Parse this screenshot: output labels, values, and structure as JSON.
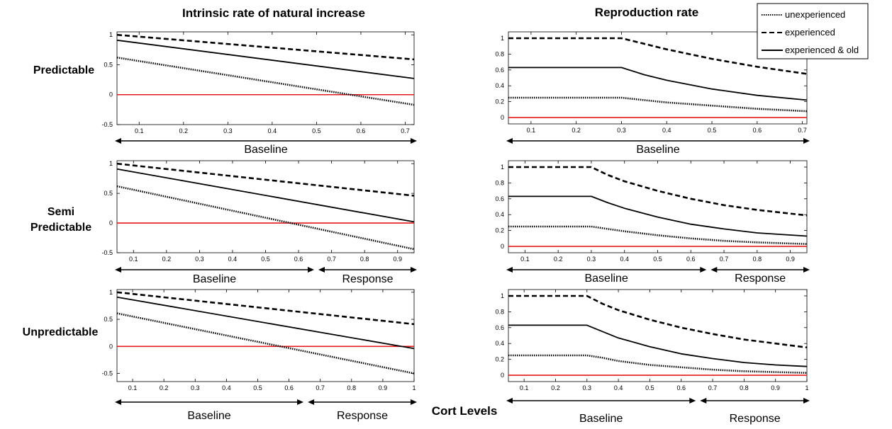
{
  "figure": {
    "xlabel": "Cort Levels",
    "row_labels": [
      [
        "Predictable"
      ],
      [
        "Semi",
        "Predictable"
      ],
      [
        "Unpredictable"
      ]
    ],
    "column_titles": [
      "Intrinsic rate of natural increase",
      "Reproduction rate"
    ],
    "legend": {
      "placement": "top-right",
      "entries": [
        {
          "label": "unexperienced",
          "style": "dotted"
        },
        {
          "label": "experienced",
          "style": "dashed"
        },
        {
          "label": "experienced & old",
          "style": "solid"
        }
      ]
    },
    "colors": {
      "line": "#000000",
      "reference": "#e41a1c",
      "axis": "#000000"
    }
  },
  "chart_data": [
    {
      "id": "r-predictable",
      "type": "line",
      "title": "Intrinsic rate of natural increase",
      "row": "Predictable",
      "xlim": [
        0.05,
        0.72
      ],
      "ylim": [
        -0.5,
        1.05
      ],
      "xticks": [
        0.1,
        0.2,
        0.3,
        0.4,
        0.5,
        0.6,
        0.7
      ],
      "yticks": [
        -0.5,
        0,
        0.5,
        1
      ],
      "reference_y": 0,
      "ranges": [
        {
          "label": "Baseline",
          "from": 0.05,
          "to": 0.72
        }
      ],
      "series": [
        {
          "name": "unexperienced",
          "style": "dotted",
          "x": [
            0.05,
            0.72
          ],
          "y": [
            0.62,
            -0.17
          ]
        },
        {
          "name": "experienced",
          "style": "dashed",
          "x": [
            0.05,
            0.72
          ],
          "y": [
            1.0,
            0.59
          ]
        },
        {
          "name": "experienced & old",
          "style": "solid",
          "x": [
            0.05,
            0.72
          ],
          "y": [
            0.91,
            0.27
          ]
        }
      ]
    },
    {
      "id": "r-semi",
      "type": "line",
      "title": "Intrinsic rate of natural increase",
      "row": "Semi Predictable",
      "xlim": [
        0.05,
        0.95
      ],
      "ylim": [
        -0.5,
        1.05
      ],
      "xticks": [
        0.1,
        0.2,
        0.3,
        0.4,
        0.5,
        0.6,
        0.7,
        0.8,
        0.9
      ],
      "yticks": [
        -0.5,
        0,
        0.5,
        1
      ],
      "reference_y": 0,
      "ranges": [
        {
          "label": "Baseline",
          "from": 0.05,
          "to": 0.65
        },
        {
          "label": "Response",
          "from": 0.65,
          "to": 0.95
        }
      ],
      "series": [
        {
          "name": "unexperienced",
          "style": "dotted",
          "x": [
            0.05,
            0.95
          ],
          "y": [
            0.62,
            -0.44
          ]
        },
        {
          "name": "experienced",
          "style": "dashed",
          "x": [
            0.05,
            0.95
          ],
          "y": [
            1.0,
            0.46
          ]
        },
        {
          "name": "experienced & old",
          "style": "solid",
          "x": [
            0.05,
            0.95
          ],
          "y": [
            0.91,
            0.02
          ]
        }
      ]
    },
    {
      "id": "r-unpredictable",
      "type": "line",
      "title": "Intrinsic rate of natural increase",
      "row": "Unpredictable",
      "xlim": [
        0.05,
        1.0
      ],
      "ylim": [
        -0.65,
        1.05
      ],
      "xticks": [
        0.1,
        0.2,
        0.3,
        0.4,
        0.5,
        0.6,
        0.7,
        0.8,
        0.9,
        1
      ],
      "yticks": [
        -0.5,
        0,
        0.5,
        1
      ],
      "reference_y": 0,
      "ranges": [
        {
          "label": "Baseline",
          "from": 0.05,
          "to": 0.65
        },
        {
          "label": "Response",
          "from": 0.65,
          "to": 1.0
        }
      ],
      "series": [
        {
          "name": "unexperienced",
          "style": "dotted",
          "x": [
            0.05,
            1.0
          ],
          "y": [
            0.61,
            -0.5
          ]
        },
        {
          "name": "experienced",
          "style": "dashed",
          "x": [
            0.05,
            1.0
          ],
          "y": [
            1.0,
            0.41
          ]
        },
        {
          "name": "experienced & old",
          "style": "solid",
          "x": [
            0.05,
            1.0
          ],
          "y": [
            0.91,
            -0.04
          ]
        }
      ]
    },
    {
      "id": "repro-predictable",
      "type": "line",
      "title": "Reproduction rate",
      "row": "Predictable",
      "xlim": [
        0.05,
        0.71
      ],
      "ylim": [
        -0.08,
        1.08
      ],
      "xticks": [
        0.1,
        0.2,
        0.3,
        0.4,
        0.5,
        0.6,
        0.7
      ],
      "yticks": [
        0,
        0.2,
        0.4,
        0.6,
        0.8,
        1
      ],
      "reference_y": 0,
      "ranges": [
        {
          "label": "Baseline",
          "from": 0.05,
          "to": 0.71
        }
      ],
      "series": [
        {
          "name": "unexperienced",
          "style": "dotted",
          "x": [
            0.05,
            0.3,
            0.35,
            0.4,
            0.5,
            0.6,
            0.71
          ],
          "y": [
            0.25,
            0.25,
            0.22,
            0.19,
            0.15,
            0.11,
            0.08
          ]
        },
        {
          "name": "experienced",
          "style": "dashed",
          "x": [
            0.05,
            0.3,
            0.35,
            0.4,
            0.5,
            0.6,
            0.71
          ],
          "y": [
            1.0,
            1.0,
            0.93,
            0.86,
            0.74,
            0.64,
            0.55
          ]
        },
        {
          "name": "experienced & old",
          "style": "solid",
          "x": [
            0.05,
            0.3,
            0.35,
            0.4,
            0.5,
            0.6,
            0.71
          ],
          "y": [
            0.63,
            0.63,
            0.54,
            0.47,
            0.36,
            0.28,
            0.22
          ]
        }
      ]
    },
    {
      "id": "repro-semi",
      "type": "line",
      "title": "Reproduction rate",
      "row": "Semi Predictable",
      "xlim": [
        0.05,
        0.95
      ],
      "ylim": [
        -0.08,
        1.08
      ],
      "xticks": [
        0.1,
        0.2,
        0.3,
        0.4,
        0.5,
        0.6,
        0.7,
        0.8,
        0.9
      ],
      "yticks": [
        0,
        0.2,
        0.4,
        0.6,
        0.8,
        1
      ],
      "reference_y": 0,
      "ranges": [
        {
          "label": "Baseline",
          "from": 0.05,
          "to": 0.65
        },
        {
          "label": "Response",
          "from": 0.65,
          "to": 0.95
        }
      ],
      "series": [
        {
          "name": "unexperienced",
          "style": "dotted",
          "x": [
            0.05,
            0.3,
            0.35,
            0.4,
            0.5,
            0.6,
            0.7,
            0.8,
            0.95
          ],
          "y": [
            0.25,
            0.25,
            0.22,
            0.19,
            0.14,
            0.1,
            0.07,
            0.05,
            0.03
          ]
        },
        {
          "name": "experienced",
          "style": "dashed",
          "x": [
            0.05,
            0.3,
            0.35,
            0.4,
            0.5,
            0.6,
            0.7,
            0.8,
            0.95
          ],
          "y": [
            1.0,
            1.0,
            0.9,
            0.82,
            0.7,
            0.6,
            0.52,
            0.46,
            0.39
          ]
        },
        {
          "name": "experienced & old",
          "style": "solid",
          "x": [
            0.05,
            0.3,
            0.35,
            0.4,
            0.5,
            0.6,
            0.7,
            0.8,
            0.95
          ],
          "y": [
            0.63,
            0.63,
            0.55,
            0.48,
            0.37,
            0.28,
            0.22,
            0.17,
            0.13
          ]
        }
      ]
    },
    {
      "id": "repro-unpredictable",
      "type": "line",
      "title": "Reproduction rate",
      "row": "Unpredictable",
      "xlim": [
        0.05,
        1.0
      ],
      "ylim": [
        -0.08,
        1.08
      ],
      "xticks": [
        0.1,
        0.2,
        0.3,
        0.4,
        0.5,
        0.6,
        0.7,
        0.8,
        0.9,
        1
      ],
      "yticks": [
        0,
        0.2,
        0.4,
        0.6,
        0.8,
        1
      ],
      "reference_y": 0,
      "ranges": [
        {
          "label": "Baseline",
          "from": 0.05,
          "to": 0.65
        },
        {
          "label": "Response",
          "from": 0.65,
          "to": 1.0
        }
      ],
      "series": [
        {
          "name": "unexperienced",
          "style": "dotted",
          "x": [
            0.05,
            0.3,
            0.35,
            0.4,
            0.5,
            0.6,
            0.7,
            0.8,
            0.9,
            1.0
          ],
          "y": [
            0.25,
            0.25,
            0.22,
            0.18,
            0.13,
            0.1,
            0.07,
            0.05,
            0.04,
            0.03
          ]
        },
        {
          "name": "experienced",
          "style": "dashed",
          "x": [
            0.05,
            0.3,
            0.35,
            0.4,
            0.5,
            0.6,
            0.7,
            0.8,
            0.9,
            1.0
          ],
          "y": [
            1.0,
            1.0,
            0.9,
            0.82,
            0.7,
            0.6,
            0.52,
            0.45,
            0.4,
            0.35
          ]
        },
        {
          "name": "experienced & old",
          "style": "solid",
          "x": [
            0.05,
            0.3,
            0.35,
            0.4,
            0.5,
            0.6,
            0.7,
            0.8,
            0.9,
            1.0
          ],
          "y": [
            0.63,
            0.63,
            0.55,
            0.47,
            0.36,
            0.27,
            0.21,
            0.16,
            0.13,
            0.11
          ]
        }
      ]
    }
  ]
}
